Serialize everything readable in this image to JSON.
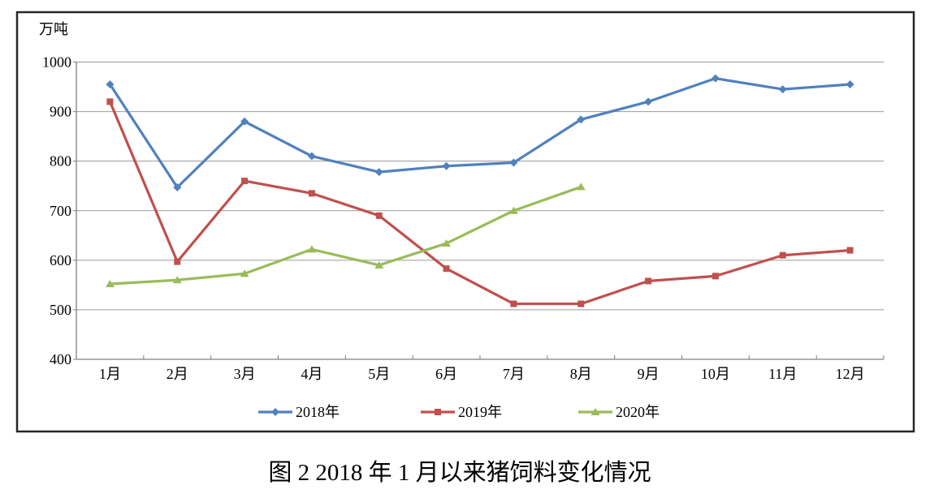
{
  "chart_data": {
    "type": "line",
    "title": "图 2  2018 年 1 月以来猪饲料变化情况",
    "unit_label": "万吨",
    "xlabel": "",
    "ylabel": "万吨",
    "ylim": [
      400,
      1000
    ],
    "ytick_step": 100,
    "yticks": [
      "400",
      "500",
      "600",
      "700",
      "800",
      "900",
      "1000"
    ],
    "grid": "horizontal",
    "legend_position": "bottom",
    "categories": [
      "1月",
      "2月",
      "3月",
      "4月",
      "5月",
      "6月",
      "7月",
      "8月",
      "9月",
      "10月",
      "11月",
      "12月"
    ],
    "series": [
      {
        "name": "2018年",
        "color": "#4F81BD",
        "marker": "diamond",
        "values": [
          955,
          747,
          880,
          810,
          778,
          790,
          797,
          884,
          920,
          967,
          945,
          955
        ]
      },
      {
        "name": "2019年",
        "color": "#C0504D",
        "marker": "square",
        "values": [
          920,
          597,
          760,
          735,
          690,
          583,
          512,
          512,
          558,
          568,
          610,
          620
        ]
      },
      {
        "name": "2020年",
        "color": "#9BBB59",
        "marker": "triangle",
        "values": [
          552,
          560,
          573,
          622,
          590,
          634,
          700,
          748
        ]
      }
    ],
    "colors": {
      "gridline": "#9a9a9a",
      "axis": "#808080",
      "border": "#262626",
      "background": "#ffffff"
    }
  }
}
